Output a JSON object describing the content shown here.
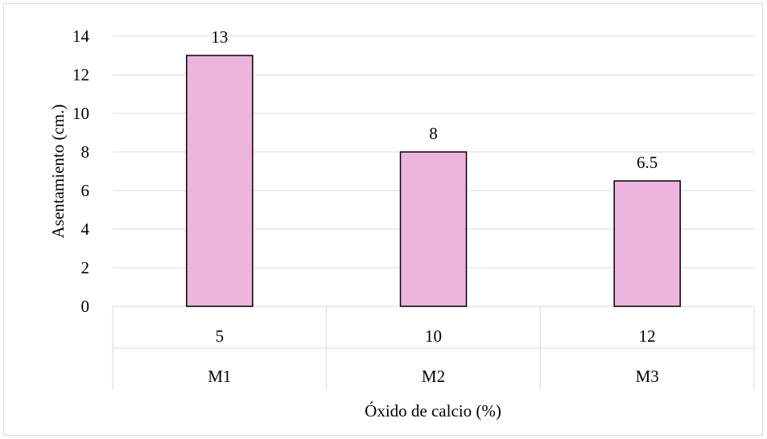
{
  "chart_data": {
    "type": "bar",
    "categories": [
      "5",
      "10",
      "12"
    ],
    "group_labels": [
      "M1",
      "M2",
      "M3"
    ],
    "values": [
      13,
      8,
      6.5
    ],
    "data_labels": [
      "13",
      "8",
      "6.5"
    ],
    "title": "",
    "xlabel": "Óxido de calcio (%)",
    "ylabel": "Asentamiento (cm.)",
    "ylim": [
      0,
      14
    ],
    "yticks": [
      "0",
      "2",
      "4",
      "6",
      "8",
      "10",
      "12",
      "14"
    ],
    "grid": true,
    "legend": "none",
    "bar_color": "#ecb4dc",
    "bar_edge_color": "#000000",
    "grid_color": "#d9d9d9"
  }
}
